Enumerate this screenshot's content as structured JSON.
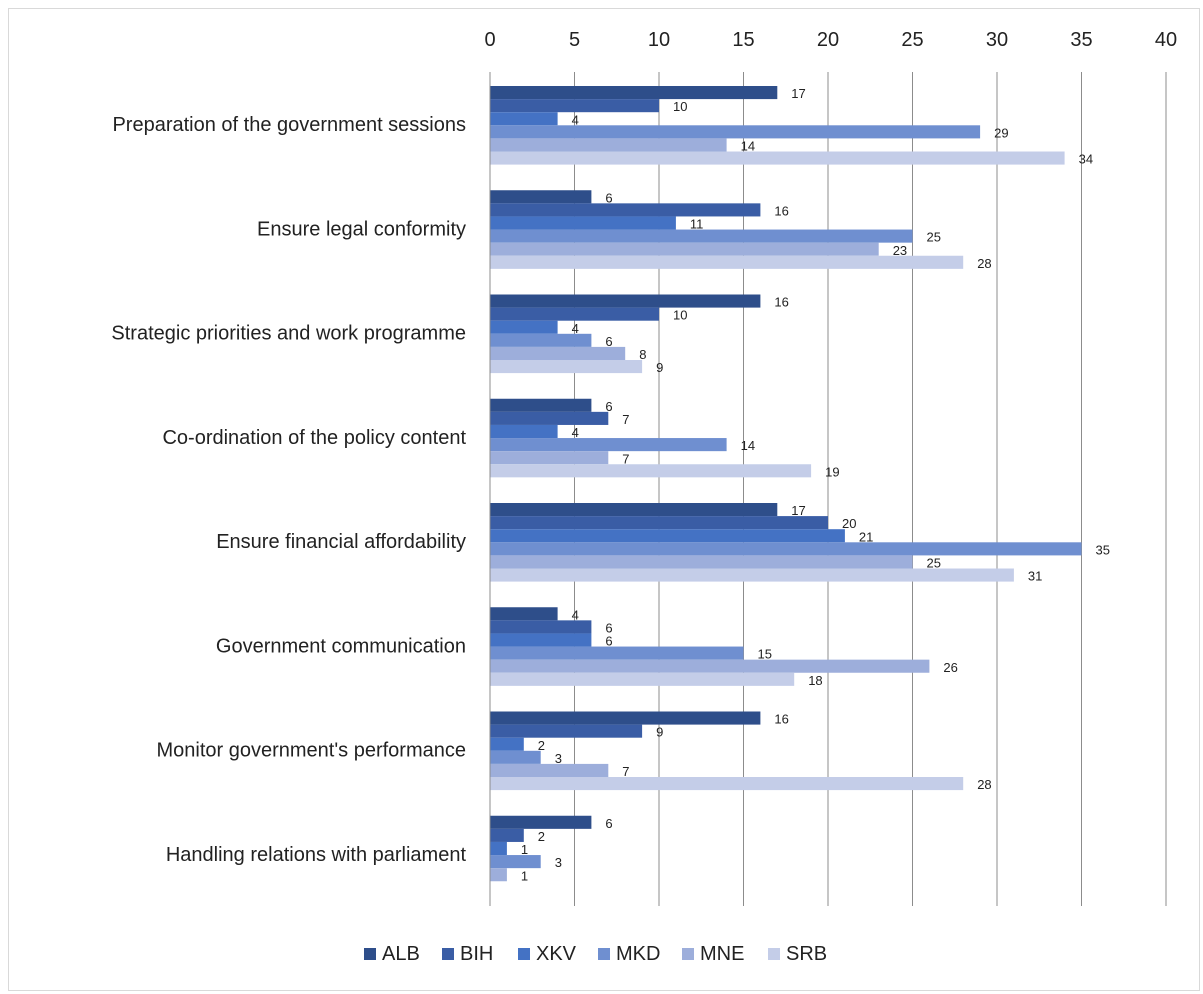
{
  "chart_data": {
    "type": "bar",
    "orientation": "horizontal",
    "categories": [
      "Preparation of the government sessions",
      "Ensure legal conformity",
      "Strategic priorities and work programme",
      "Co-ordination of the policy content",
      "Ensure financial affordability",
      "Government communication",
      "Monitor government's performance",
      "Handling relations with parliament"
    ],
    "series": [
      {
        "name": "ALB",
        "color": "#2e4e8a",
        "values": [
          17,
          6,
          16,
          6,
          17,
          4,
          16,
          6
        ]
      },
      {
        "name": "BIH",
        "color": "#3a5da5",
        "values": [
          10,
          16,
          10,
          7,
          20,
          6,
          9,
          2
        ]
      },
      {
        "name": "XKV",
        "color": "#4472c4",
        "values": [
          4,
          11,
          4,
          4,
          21,
          6,
          2,
          1
        ]
      },
      {
        "name": "MKD",
        "color": "#6f8fd0",
        "values": [
          29,
          25,
          6,
          14,
          35,
          15,
          3,
          3
        ]
      },
      {
        "name": "MNE",
        "color": "#9daedb",
        "values": [
          14,
          23,
          8,
          7,
          25,
          26,
          7,
          1
        ]
      },
      {
        "name": "SRB",
        "color": "#c4cde8",
        "values": [
          34,
          28,
          9,
          19,
          31,
          18,
          28,
          null
        ]
      }
    ],
    "xlim": [
      0,
      40
    ],
    "xticks": [
      0,
      5,
      10,
      15,
      20,
      25,
      30,
      35,
      40
    ],
    "x_axis_position": "top",
    "grid": true,
    "legend_position": "bottom",
    "title": "",
    "xlabel": "",
    "ylabel": ""
  }
}
